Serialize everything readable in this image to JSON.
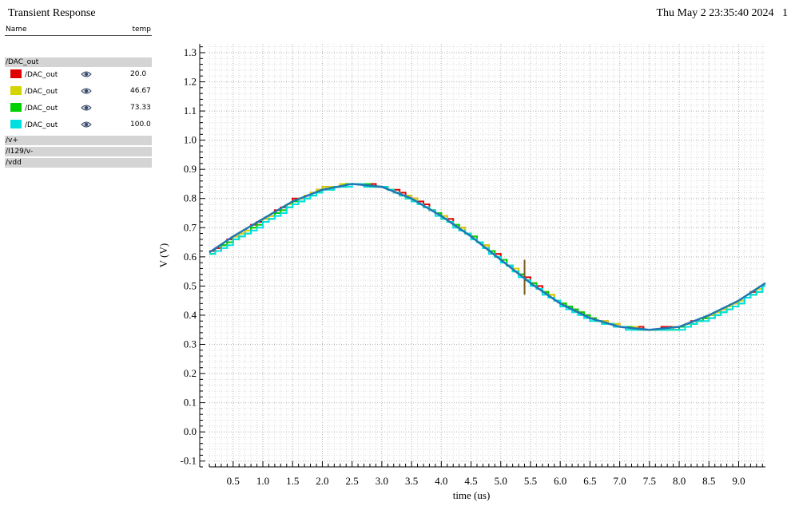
{
  "window": {
    "title": "Transient Response",
    "timestamp": "Thu May 2 23:35:40 2024",
    "page_number": "1"
  },
  "legend": {
    "name_header": "Name",
    "temp_header": "temp",
    "group_label": "/DAC_out",
    "traces": [
      {
        "name": "/DAC_out",
        "temp": "20.0",
        "color": "#e00000"
      },
      {
        "name": "/DAC_out",
        "temp": "46.67",
        "color": "#d4d400"
      },
      {
        "name": "/DAC_out",
        "temp": "73.33",
        "color": "#00d000"
      },
      {
        "name": "/DAC_out",
        "temp": "100.0",
        "color": "#00e0e0"
      }
    ],
    "other_groups": [
      "/v+",
      "/I129/v-",
      "/vdd"
    ]
  },
  "chart_data": {
    "type": "line",
    "xlabel": "time (us)",
    "ylabel": "V (V)",
    "xlim": [
      0.1,
      9.45
    ],
    "ylim": [
      -0.12,
      1.33
    ],
    "xticks": [
      "0.5",
      "1.0",
      "1.5",
      "2.0",
      "2.5",
      "3.0",
      "3.5",
      "4.0",
      "4.5",
      "5.0",
      "5.5",
      "6.0",
      "6.5",
      "7.0",
      "7.5",
      "8.0",
      "8.5",
      "9.0"
    ],
    "yticks": [
      "-0.1",
      "0.0",
      "0.1",
      "0.2",
      "0.3",
      "0.4",
      "0.5",
      "0.6",
      "0.7",
      "0.8",
      "0.9",
      "1.0",
      "1.1",
      "1.2",
      "1.3"
    ],
    "grid": true,
    "reference_color": "#1f77b4",
    "reference_curve": {
      "x": [
        0.1,
        0.5,
        1.0,
        1.5,
        2.0,
        2.5,
        3.0,
        3.5,
        4.0,
        4.5,
        5.0,
        5.5,
        6.0,
        6.5,
        7.0,
        7.5,
        8.0,
        8.5,
        9.0,
        9.45
      ],
      "y": [
        0.615,
        0.67,
        0.73,
        0.79,
        0.83,
        0.85,
        0.84,
        0.8,
        0.74,
        0.67,
        0.59,
        0.51,
        0.44,
        0.39,
        0.36,
        0.35,
        0.36,
        0.4,
        0.45,
        0.51
      ]
    },
    "series": [
      {
        "temp": "20.0",
        "values_x": [
          0.1,
          0.5,
          1.0,
          1.5,
          2.0,
          2.5,
          3.0,
          3.5,
          4.0,
          4.5,
          5.0,
          5.5,
          6.0,
          6.5,
          7.0,
          7.5,
          8.0,
          8.5,
          9.0,
          9.45
        ],
        "values_y": [
          0.615,
          0.67,
          0.73,
          0.795,
          0.835,
          0.852,
          0.843,
          0.8,
          0.74,
          0.67,
          0.59,
          0.51,
          0.44,
          0.39,
          0.36,
          0.352,
          0.36,
          0.4,
          0.45,
          0.51
        ]
      },
      {
        "temp": "46.67",
        "values_x": [
          0.1,
          0.5,
          1.0,
          1.5,
          2.0,
          2.5,
          3.0,
          3.5,
          4.0,
          4.5,
          5.0,
          5.5,
          6.0,
          6.5,
          7.0,
          7.5,
          8.0,
          8.5,
          9.0,
          9.45
        ],
        "values_y": [
          0.61,
          0.665,
          0.725,
          0.79,
          0.835,
          0.852,
          0.84,
          0.797,
          0.737,
          0.667,
          0.587,
          0.507,
          0.437,
          0.388,
          0.36,
          0.35,
          0.358,
          0.397,
          0.447,
          0.507
        ]
      },
      {
        "temp": "73.33",
        "values_x": [
          0.1,
          0.5,
          1.0,
          1.5,
          2.0,
          2.5,
          3.0,
          3.5,
          4.0,
          4.5,
          5.0,
          5.5,
          6.0,
          6.5,
          7.0,
          7.5,
          8.0,
          8.5,
          9.0,
          9.45
        ],
        "values_y": [
          0.61,
          0.66,
          0.72,
          0.785,
          0.83,
          0.85,
          0.838,
          0.795,
          0.735,
          0.665,
          0.585,
          0.505,
          0.435,
          0.386,
          0.358,
          0.348,
          0.356,
          0.395,
          0.445,
          0.505
        ]
      },
      {
        "temp": "100.0",
        "values_x": [
          0.1,
          0.5,
          1.0,
          1.5,
          2.0,
          2.5,
          3.0,
          3.5,
          4.0,
          4.5,
          5.0,
          5.5,
          6.0,
          6.5,
          7.0,
          7.5,
          8.0,
          8.5,
          9.0,
          9.45
        ],
        "values_y": [
          0.605,
          0.655,
          0.715,
          0.78,
          0.828,
          0.848,
          0.836,
          0.793,
          0.733,
          0.662,
          0.582,
          0.502,
          0.432,
          0.384,
          0.356,
          0.345,
          0.354,
          0.392,
          0.442,
          0.502
        ]
      }
    ],
    "glitch": {
      "x": 5.4,
      "ymin": 0.47,
      "ymax": 0.59
    }
  }
}
